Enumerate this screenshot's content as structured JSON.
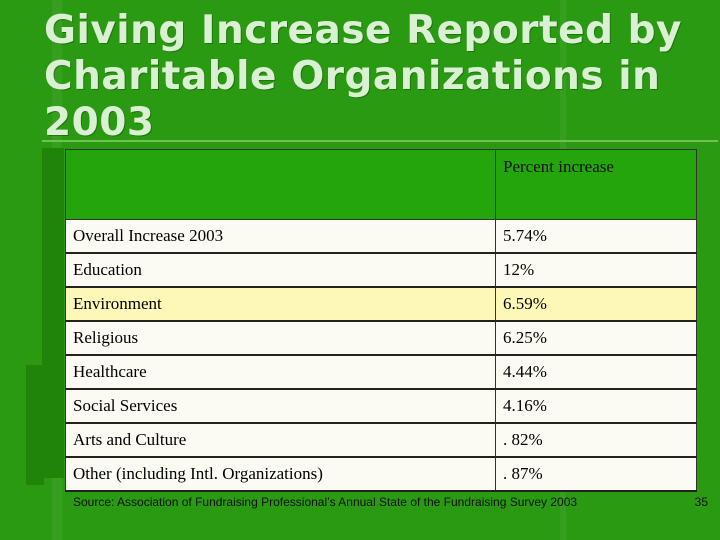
{
  "slide": {
    "title": "Giving Increase Reported by Charitable Organizations in 2003",
    "table": {
      "header": [
        "",
        "Percent increase"
      ],
      "rows": [
        {
          "category": "Overall Increase 2003",
          "value": "5.74%"
        },
        {
          "category": "Education",
          "value": "12%"
        },
        {
          "category": "Environment",
          "value": "6.59%"
        },
        {
          "category": "Religious",
          "value": "6.25%"
        },
        {
          "category": "Healthcare",
          "value": "4.44%"
        },
        {
          "category": "Social Services",
          "value": "4.16%"
        },
        {
          "category": "Arts and Culture",
          "value": ". 82%"
        },
        {
          "category": "Other (including Intl. Organizations)",
          "value": ". 87%"
        }
      ]
    },
    "source": "Source:  Association of Fundraising Professional’s Annual State of the Fundraising Survey 2003",
    "page_number": "35",
    "colors": {
      "background": "#2a9a12",
      "header_cell": "#25a50c",
      "highlight_row": "#fdf7b8",
      "title_text": "#d9f1d2"
    }
  }
}
